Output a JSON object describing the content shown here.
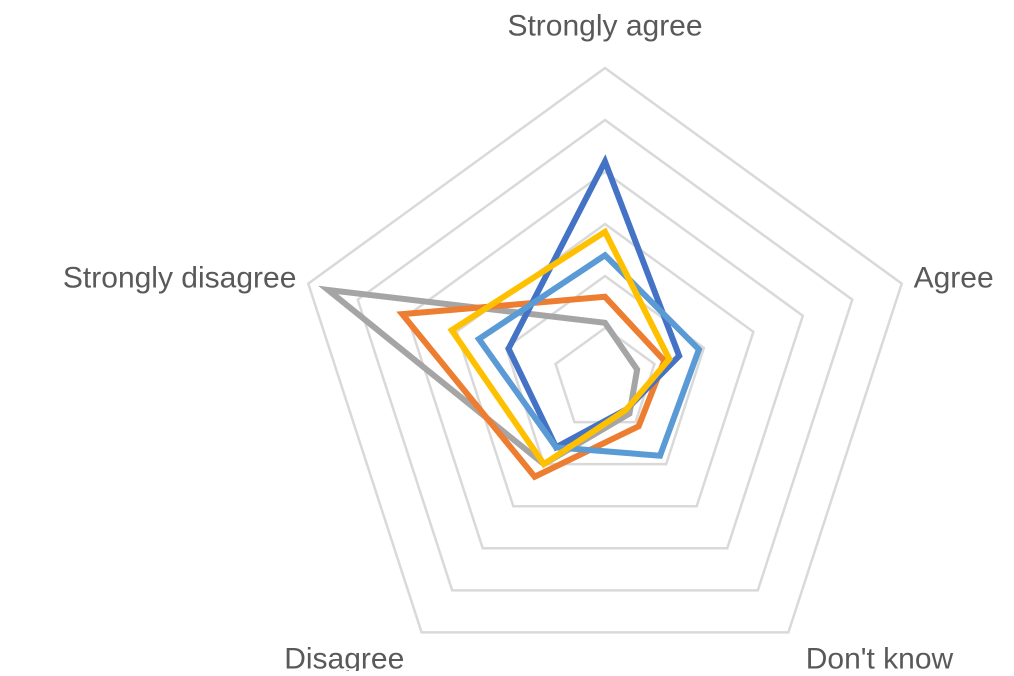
{
  "chart_data": {
    "type": "radar",
    "categories": [
      "Strongly agree",
      "Agree",
      "Don't know",
      "Disagree",
      "Strongly disagree"
    ],
    "rlim": [
      0,
      6
    ],
    "rticks": [
      1,
      2,
      3,
      4,
      5,
      6
    ],
    "grid": true,
    "series": [
      {
        "color": "#a5a5a5",
        "values": [
          1.1,
          0.65,
          0.8,
          2.0,
          5.6
        ]
      },
      {
        "color": "#ed7d31",
        "values": [
          1.6,
          1.2,
          1.1,
          2.3,
          4.1
        ]
      },
      {
        "color": "#4472c4",
        "values": [
          4.2,
          1.5,
          0.7,
          1.6,
          1.95
        ]
      },
      {
        "color": "#5b9bd5",
        "values": [
          2.4,
          1.9,
          1.8,
          1.6,
          2.55
        ]
      },
      {
        "color": "#ffc000",
        "values": [
          2.85,
          1.3,
          0.7,
          2.0,
          3.1
        ]
      }
    ]
  }
}
